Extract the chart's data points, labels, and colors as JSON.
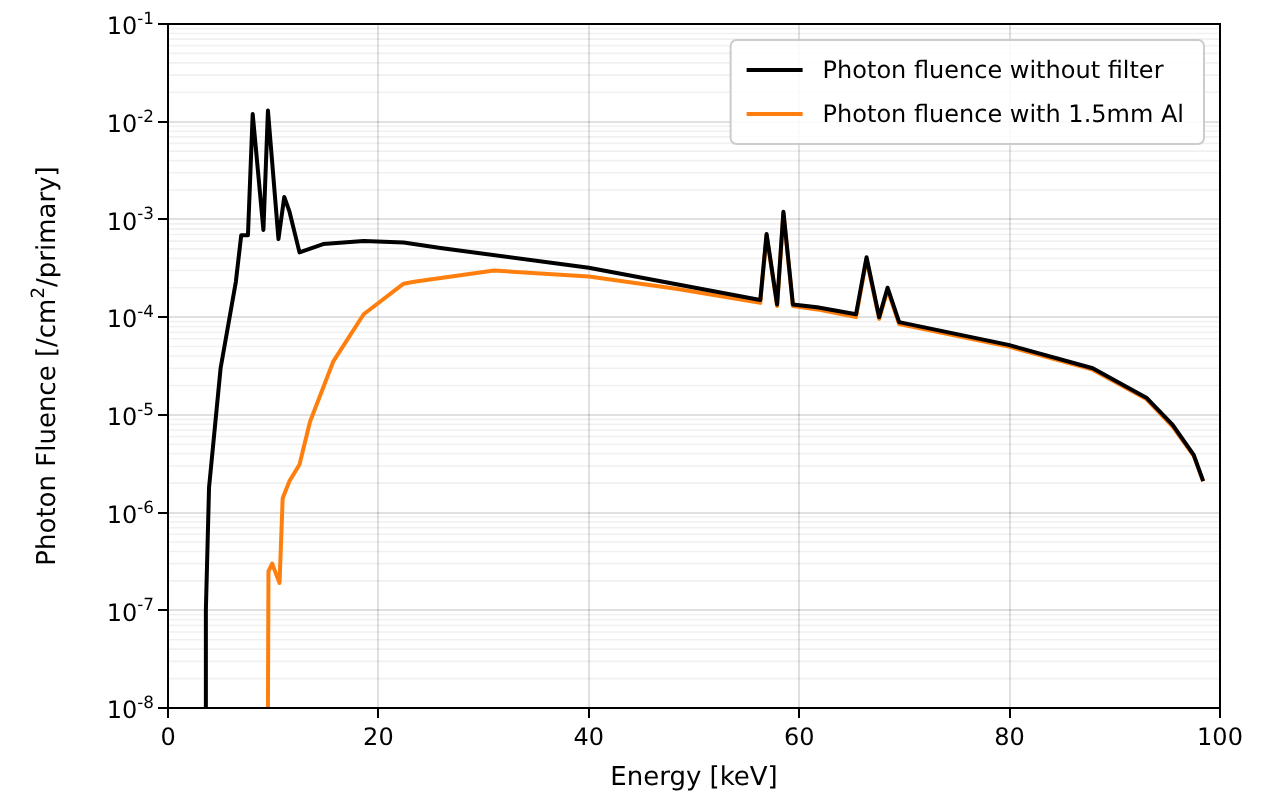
{
  "chart_data": {
    "type": "line",
    "xlabel": "Energy [keV]",
    "ylabel": "Photon Fluence [/cm$^{2}$/primary]",
    "log": "y",
    "grid": true,
    "legend": "top right",
    "marker": "none",
    "line_style": "solid",
    "xlim": [
      0,
      100
    ],
    "xticks": [
      0,
      20,
      40,
      60,
      80,
      100
    ],
    "ylim": [
      1e-08,
      0.1
    ],
    "yticks": [
      {
        "value": 1e-08,
        "label": "10$^{-8}$"
      },
      {
        "value": 1e-07,
        "label": "10$^{-7}$"
      },
      {
        "value": 1e-06,
        "label": "10$^{-6}$"
      },
      {
        "value": 1e-05,
        "label": "10$^{-5}$"
      },
      {
        "value": 0.0001,
        "label": "10$^{-4}$"
      },
      {
        "value": 0.001,
        "label": "10$^{-3}$"
      },
      {
        "value": 0.01,
        "label": "10$^{-2}$"
      },
      {
        "value": 0.1,
        "label": "10$^{-1}$"
      }
    ],
    "series": [
      {
        "name": "Photon fluence without filter",
        "color": "#000000",
        "x": [
          3.5,
          3.6,
          3.9,
          5.0,
          6.45,
          6.96,
          7.6,
          8.05,
          9.07,
          9.5,
          10.5,
          11.05,
          11.55,
          12.5,
          14.75,
          18.6,
          22.4,
          25.9,
          40,
          56.3,
          56.9,
          57.9,
          58.5,
          59.4,
          61.7,
          65.4,
          66.4,
          67.6,
          68.4,
          69.5,
          79.9,
          87.9,
          93.0,
          95.5,
          97.5,
          98.4
        ],
        "values": [
          1e-08,
          1e-07,
          1.8e-06,
          3e-05,
          0.00023,
          0.00069,
          0.00069,
          0.012,
          0.00078,
          0.013,
          0.00063,
          0.0017,
          0.0012,
          0.00046,
          0.00056,
          0.0006,
          0.00058,
          0.00051,
          0.00032,
          0.00015,
          0.00071,
          0.000135,
          0.0012,
          0.000135,
          0.000126,
          0.000107,
          0.00041,
          0.0001,
          0.0002,
          8.9e-05,
          5.2e-05,
          3e-05,
          1.5e-05,
          7.9e-06,
          3.9e-06,
          2.1e-06
        ]
      },
      {
        "name": "Photon fluence with 1.5mm Al",
        "color": "#ff7f0e",
        "x": [
          9.5,
          9.55,
          9.9,
          10.6,
          10.9,
          11.55,
          12.5,
          13.5,
          15.7,
          18.6,
          22.4,
          23.4,
          31,
          40,
          48.3,
          56.3,
          56.9,
          57.9,
          58.5,
          59.4,
          61.7,
          65.4,
          66.4,
          67.6,
          68.4,
          69.5,
          79.9,
          87.9,
          93.0,
          95.5,
          97.5,
          98.4
        ],
        "values": [
          1e-08,
          2.5e-07,
          3e-07,
          1.9e-07,
          1.4e-06,
          2.1e-06,
          3.1e-06,
          8.5e-06,
          3.5e-05,
          0.000107,
          0.00022,
          0.00023,
          0.0003,
          0.00026,
          0.000195,
          0.00014,
          0.00069,
          0.00013,
          0.00115,
          0.00013,
          0.00012,
          0.0001,
          0.00039,
          9.6e-05,
          0.00019,
          8.5e-05,
          5e-05,
          2.9e-05,
          1.45e-05,
          7.6e-06,
          3.8e-06,
          2.1e-06
        ]
      }
    ]
  }
}
